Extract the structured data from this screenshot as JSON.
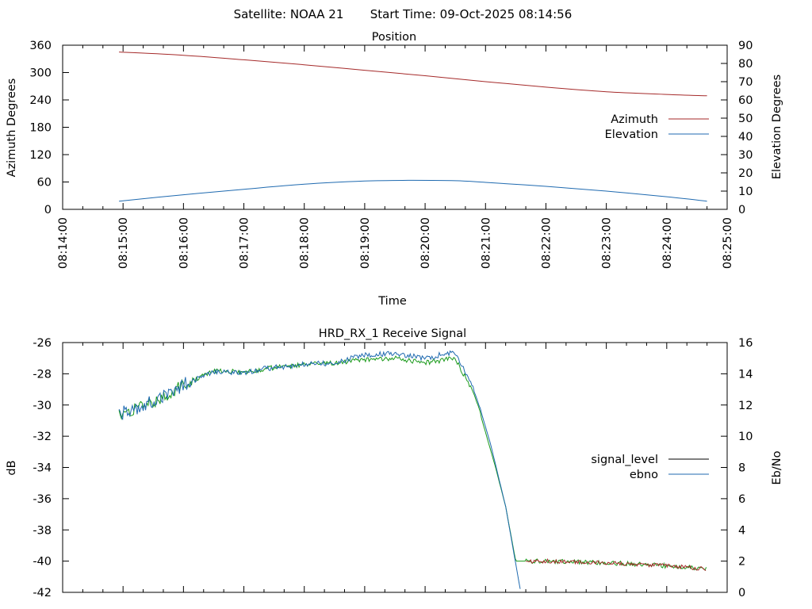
{
  "header": {
    "satellite": "Satellite: NOAA 21",
    "start_time": "Start Time: 09-Oct-2025 08:14:56"
  },
  "chart_data": [
    {
      "type": "line",
      "title": "Position",
      "xlabel": "Time",
      "ylabel": "Azimuth Degrees",
      "y2label": "Elevation Degrees",
      "xlim": [
        "08:14:00",
        "08:25:00"
      ],
      "ylim": [
        0,
        360
      ],
      "y2lim": [
        0,
        90
      ],
      "x_ticks": [
        "08:14:00",
        "08:15:00",
        "08:16:00",
        "08:17:00",
        "08:18:00",
        "08:19:00",
        "08:20:00",
        "08:21:00",
        "08:22:00",
        "08:23:00",
        "08:24:00",
        "08:25:00"
      ],
      "y_ticks": [
        "0",
        "60",
        "120",
        "180",
        "240",
        "300",
        "360"
      ],
      "y2_ticks": [
        "0",
        "10",
        "20",
        "30",
        "40",
        "50",
        "60",
        "70",
        "80",
        "90"
      ],
      "legend_position": "right",
      "series": [
        {
          "name": "Azimuth",
          "axis": "y",
          "color": "#a52a2a",
          "x": [
            "08:14:56",
            "08:16:00",
            "08:17:00",
            "08:18:00",
            "08:19:00",
            "08:20:00",
            "08:21:00",
            "08:22:00",
            "08:23:00",
            "08:24:00",
            "08:24:40"
          ],
          "values": [
            345,
            338,
            328,
            317,
            305,
            293,
            280,
            268,
            258,
            252,
            249
          ]
        },
        {
          "name": "Elevation",
          "axis": "y2",
          "color": "#1f6ab0",
          "x": [
            "08:14:56",
            "08:16:00",
            "08:17:00",
            "08:18:00",
            "08:19:00",
            "08:19:48",
            "08:20:30",
            "08:21:00",
            "08:22:00",
            "08:23:00",
            "08:24:00",
            "08:24:40"
          ],
          "values": [
            4.5,
            8,
            11,
            13.8,
            15.5,
            15.9,
            15.7,
            14.8,
            12.6,
            10,
            6.9,
            4.5
          ]
        }
      ]
    },
    {
      "type": "line",
      "title": "HRD_RX_1 Receive Signal",
      "xlabel": "",
      "ylabel": "dB",
      "y2label": "Eb/No",
      "xlim": [
        "08:14:00",
        "08:25:00"
      ],
      "ylim": [
        -42,
        -26
      ],
      "y2lim": [
        0,
        16
      ],
      "y_ticks": [
        "-42",
        "-40",
        "-38",
        "-36",
        "-34",
        "-32",
        "-30",
        "-28",
        "-26"
      ],
      "y2_ticks": [
        "0",
        "2",
        "4",
        "6",
        "8",
        "10",
        "12",
        "14",
        "16"
      ],
      "legend_position": "right",
      "series": [
        {
          "name": "signal_level",
          "axis": "y",
          "color": "#000000",
          "x": [
            "08:14:56",
            "08:15:30",
            "08:16:00",
            "08:16:30",
            "08:17:00",
            "08:17:30",
            "08:18:00",
            "08:18:30",
            "08:19:00",
            "08:19:30",
            "08:20:00",
            "08:20:30",
            "08:20:50",
            "08:21:10",
            "08:21:20",
            "08:21:30",
            "08:22:00",
            "08:23:00",
            "08:24:00",
            "08:24:40"
          ],
          "values": [
            -30.6,
            -29.8,
            -28.7,
            -27.8,
            -27.9,
            -27.6,
            -27.4,
            -27.3,
            -27.1,
            -27.0,
            -27.3,
            -27.0,
            -29.5,
            -34.0,
            -36.5,
            -40.0,
            -40.0,
            -40.1,
            -40.3,
            -40.5
          ]
        },
        {
          "name": "ebno",
          "axis": "y2",
          "color": "#1f6ab0",
          "x": [
            "08:14:56",
            "08:15:30",
            "08:16:00",
            "08:16:30",
            "08:17:00",
            "08:17:30",
            "08:18:00",
            "08:18:30",
            "08:19:00",
            "08:19:30",
            "08:20:00",
            "08:20:30",
            "08:20:50",
            "08:21:05",
            "08:21:20",
            "08:21:35"
          ],
          "values": [
            11.4,
            12.2,
            13.3,
            14.1,
            14.1,
            14.4,
            14.6,
            14.7,
            15.2,
            15.3,
            15.0,
            15.4,
            12.8,
            9.5,
            5.5,
            0.0
          ]
        }
      ]
    }
  ]
}
